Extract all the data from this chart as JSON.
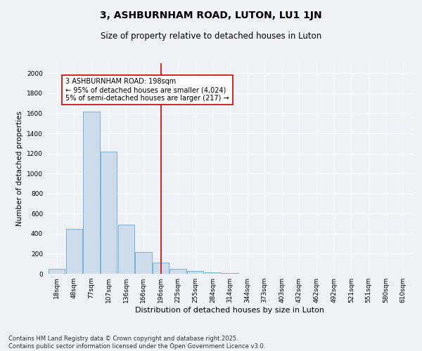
{
  "title1": "3, ASHBURNHAM ROAD, LUTON, LU1 1JN",
  "title2": "Size of property relative to detached houses in Luton",
  "xlabel": "Distribution of detached houses by size in Luton",
  "ylabel": "Number of detached properties",
  "categories": [
    "18sqm",
    "48sqm",
    "77sqm",
    "107sqm",
    "136sqm",
    "166sqm",
    "196sqm",
    "225sqm",
    "255sqm",
    "284sqm",
    "314sqm",
    "344sqm",
    "373sqm",
    "403sqm",
    "432sqm",
    "462sqm",
    "492sqm",
    "521sqm",
    "551sqm",
    "580sqm",
    "610sqm"
  ],
  "values": [
    50,
    450,
    1620,
    1220,
    490,
    220,
    115,
    50,
    25,
    15,
    8,
    3,
    0,
    0,
    0,
    0,
    0,
    0,
    0,
    0,
    0
  ],
  "bar_color": "#ccdcea",
  "bar_edge_color": "#6aaad4",
  "vline_x_index": 6,
  "vline_color": "#cc0000",
  "annotation_text": "3 ASHBURNHAM ROAD: 198sqm\n← 95% of detached houses are smaller (4,024)\n5% of semi-detached houses are larger (217) →",
  "annotation_box_color": "#ffffff",
  "annotation_edge_color": "#cc0000",
  "ylim": [
    0,
    2100
  ],
  "yticks": [
    0,
    200,
    400,
    600,
    800,
    1000,
    1200,
    1400,
    1600,
    1800,
    2000
  ],
  "background_color": "#eef2f7",
  "grid_color": "#ffffff",
  "footer": "Contains HM Land Registry data © Crown copyright and database right 2025.\nContains public sector information licensed under the Open Government Licence v3.0.",
  "title1_fontsize": 10,
  "title2_fontsize": 8.5,
  "xlabel_fontsize": 8,
  "ylabel_fontsize": 7.5,
  "tick_fontsize": 6.5,
  "annotation_fontsize": 7,
  "footer_fontsize": 6
}
